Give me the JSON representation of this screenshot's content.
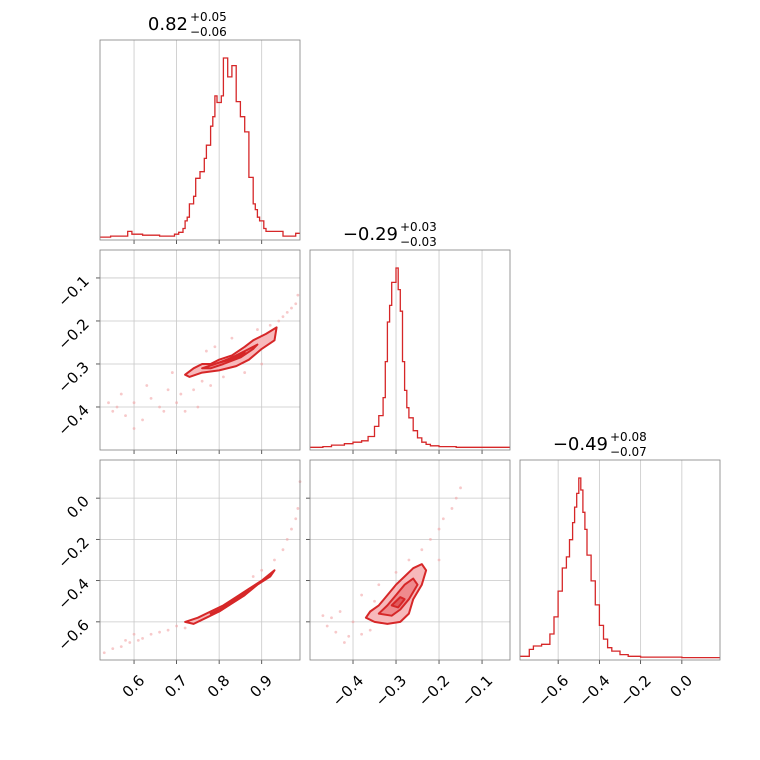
{
  "colors": {
    "accent": "#d62728",
    "fill_light": "#f7b9bb",
    "fill_mid": "#ef8a8d",
    "fill_dark": "#e05a5d",
    "scatter": "#f2a5a6"
  },
  "chart_data": {
    "type": "corner",
    "grid": true,
    "params": [
      {
        "median": "0.82",
        "plus": "+0.05",
        "minus": "−0.06",
        "range": [
          0.52,
          0.99
        ],
        "ticks": [
          0.6,
          0.7,
          0.8,
          0.9
        ],
        "tick_labels": [
          "0.6",
          "0.7",
          "0.8",
          "0.9"
        ]
      },
      {
        "median": "−0.29",
        "plus": "+0.03",
        "minus": "−0.03",
        "range": [
          -0.5,
          -0.035
        ],
        "ticks": [
          -0.4,
          -0.3,
          -0.2,
          -0.1
        ],
        "tick_labels": [
          "−0.4",
          "−0.3",
          "−0.2",
          "−0.1"
        ]
      },
      {
        "median": "−0.49",
        "plus": "+0.08",
        "minus": "−0.07",
        "range": [
          -0.785,
          0.185
        ],
        "ticks": [
          -0.6,
          -0.4,
          -0.2,
          0.0
        ],
        "tick_labels": [
          "−0.6",
          "−0.4",
          "−0.2",
          "0.0"
        ]
      }
    ],
    "histograms": [
      {
        "param": 0,
        "counts": [
          {
            "x": 0.52,
            "c": 1
          },
          {
            "x": 0.545,
            "c": 2
          },
          {
            "x": 0.575,
            "c": 2
          },
          {
            "x": 0.585,
            "c": 7
          },
          {
            "x": 0.595,
            "c": 4
          },
          {
            "x": 0.62,
            "c": 3
          },
          {
            "x": 0.66,
            "c": 2
          },
          {
            "x": 0.695,
            "c": 4
          },
          {
            "x": 0.705,
            "c": 6
          },
          {
            "x": 0.715,
            "c": 10
          },
          {
            "x": 0.72,
            "c": 18
          },
          {
            "x": 0.725,
            "c": 22
          },
          {
            "x": 0.73,
            "c": 36
          },
          {
            "x": 0.74,
            "c": 44
          },
          {
            "x": 0.745,
            "c": 63
          },
          {
            "x": 0.755,
            "c": 70
          },
          {
            "x": 0.765,
            "c": 84
          },
          {
            "x": 0.77,
            "c": 98
          },
          {
            "x": 0.78,
            "c": 118
          },
          {
            "x": 0.785,
            "c": 128
          },
          {
            "x": 0.79,
            "c": 150
          },
          {
            "x": 0.795,
            "c": 143
          },
          {
            "x": 0.805,
            "c": 150
          },
          {
            "x": 0.81,
            "c": 190
          },
          {
            "x": 0.82,
            "c": 170
          },
          {
            "x": 0.83,
            "c": 182
          },
          {
            "x": 0.84,
            "c": 144
          },
          {
            "x": 0.85,
            "c": 128
          },
          {
            "x": 0.86,
            "c": 112
          },
          {
            "x": 0.87,
            "c": 64
          },
          {
            "x": 0.88,
            "c": 36
          },
          {
            "x": 0.885,
            "c": 30
          },
          {
            "x": 0.89,
            "c": 22
          },
          {
            "x": 0.895,
            "c": 18
          },
          {
            "x": 0.905,
            "c": 10
          },
          {
            "x": 0.91,
            "c": 7
          },
          {
            "x": 0.93,
            "c": 7
          },
          {
            "x": 0.95,
            "c": 2
          },
          {
            "x": 0.98,
            "c": 5
          }
        ]
      },
      {
        "param": 1,
        "counts": [
          {
            "x": -0.5,
            "c": 1
          },
          {
            "x": -0.47,
            "c": 2
          },
          {
            "x": -0.45,
            "c": 4
          },
          {
            "x": -0.42,
            "c": 6
          },
          {
            "x": -0.4,
            "c": 8
          },
          {
            "x": -0.38,
            "c": 10
          },
          {
            "x": -0.365,
            "c": 16
          },
          {
            "x": -0.35,
            "c": 30
          },
          {
            "x": -0.34,
            "c": 45
          },
          {
            "x": -0.33,
            "c": 70
          },
          {
            "x": -0.325,
            "c": 120
          },
          {
            "x": -0.32,
            "c": 175
          },
          {
            "x": -0.315,
            "c": 198
          },
          {
            "x": -0.31,
            "c": 230
          },
          {
            "x": -0.3,
            "c": 250
          },
          {
            "x": -0.295,
            "c": 220
          },
          {
            "x": -0.29,
            "c": 190
          },
          {
            "x": -0.285,
            "c": 120
          },
          {
            "x": -0.28,
            "c": 80
          },
          {
            "x": -0.275,
            "c": 56
          },
          {
            "x": -0.27,
            "c": 42
          },
          {
            "x": -0.26,
            "c": 24
          },
          {
            "x": -0.25,
            "c": 14
          },
          {
            "x": -0.24,
            "c": 8
          },
          {
            "x": -0.23,
            "c": 5
          },
          {
            "x": -0.22,
            "c": 3
          },
          {
            "x": -0.2,
            "c": 2
          },
          {
            "x": -0.16,
            "c": 1
          },
          {
            "x": -0.1,
            "c": 1
          }
        ]
      },
      {
        "param": 2,
        "counts": [
          {
            "x": -0.785,
            "c": 2
          },
          {
            "x": -0.74,
            "c": 10
          },
          {
            "x": -0.72,
            "c": 14
          },
          {
            "x": -0.68,
            "c": 16
          },
          {
            "x": -0.64,
            "c": 28
          },
          {
            "x": -0.62,
            "c": 48
          },
          {
            "x": -0.6,
            "c": 78
          },
          {
            "x": -0.58,
            "c": 105
          },
          {
            "x": -0.56,
            "c": 118
          },
          {
            "x": -0.545,
            "c": 138
          },
          {
            "x": -0.53,
            "c": 158
          },
          {
            "x": -0.52,
            "c": 176
          },
          {
            "x": -0.51,
            "c": 192
          },
          {
            "x": -0.5,
            "c": 210
          },
          {
            "x": -0.49,
            "c": 196
          },
          {
            "x": -0.48,
            "c": 170
          },
          {
            "x": -0.47,
            "c": 150
          },
          {
            "x": -0.46,
            "c": 120
          },
          {
            "x": -0.44,
            "c": 90
          },
          {
            "x": -0.42,
            "c": 62
          },
          {
            "x": -0.4,
            "c": 38
          },
          {
            "x": -0.38,
            "c": 22
          },
          {
            "x": -0.36,
            "c": 12
          },
          {
            "x": -0.34,
            "c": 8
          },
          {
            "x": -0.3,
            "c": 4
          },
          {
            "x": -0.26,
            "c": 2
          },
          {
            "x": -0.2,
            "c": 1
          },
          {
            "x": -0.1,
            "c": 1
          },
          {
            "x": 0.0,
            "c": 0.5
          }
        ]
      }
    ],
    "pairs": [
      {
        "x_param": 0,
        "y_param": 1,
        "contours": [
          [
            [
              0.72,
              -0.325
            ],
            [
              0.74,
              -0.31
            ],
            [
              0.76,
              -0.3
            ],
            [
              0.78,
              -0.3
            ],
            [
              0.8,
              -0.29
            ],
            [
              0.83,
              -0.28
            ],
            [
              0.86,
              -0.26
            ],
            [
              0.88,
              -0.245
            ],
            [
              0.91,
              -0.23
            ],
            [
              0.935,
              -0.215
            ],
            [
              0.93,
              -0.245
            ],
            [
              0.9,
              -0.265
            ],
            [
              0.87,
              -0.29
            ],
            [
              0.84,
              -0.305
            ],
            [
              0.8,
              -0.315
            ],
            [
              0.76,
              -0.32
            ],
            [
              0.73,
              -0.33
            ]
          ],
          [
            [
              0.76,
              -0.31
            ],
            [
              0.79,
              -0.3
            ],
            [
              0.82,
              -0.29
            ],
            [
              0.86,
              -0.27
            ],
            [
              0.89,
              -0.255
            ],
            [
              0.88,
              -0.265
            ],
            [
              0.85,
              -0.285
            ],
            [
              0.81,
              -0.3
            ],
            [
              0.78,
              -0.31
            ]
          ],
          [
            [
              0.8,
              -0.297
            ],
            [
              0.83,
              -0.285
            ],
            [
              0.86,
              -0.273
            ],
            [
              0.85,
              -0.282
            ],
            [
              0.82,
              -0.292
            ]
          ]
        ],
        "scatter": [
          [
            0.55,
            -0.41
          ],
          [
            0.56,
            -0.4
          ],
          [
            0.58,
            -0.42
          ],
          [
            0.6,
            -0.39
          ],
          [
            0.57,
            -0.37
          ],
          [
            0.62,
            -0.43
          ],
          [
            0.64,
            -0.38
          ],
          [
            0.66,
            -0.4
          ],
          [
            0.63,
            -0.35
          ],
          [
            0.68,
            -0.36
          ],
          [
            0.69,
            -0.32
          ],
          [
            0.71,
            -0.37
          ],
          [
            0.7,
            -0.39
          ],
          [
            0.74,
            -0.36
          ],
          [
            0.76,
            -0.34
          ],
          [
            0.78,
            -0.35
          ],
          [
            0.77,
            -0.27
          ],
          [
            0.79,
            -0.26
          ],
          [
            0.81,
            -0.33
          ],
          [
            0.83,
            -0.24
          ],
          [
            0.86,
            -0.32
          ],
          [
            0.89,
            -0.22
          ],
          [
            0.9,
            -0.3
          ],
          [
            0.92,
            -0.21
          ],
          [
            0.94,
            -0.2
          ],
          [
            0.95,
            -0.19
          ],
          [
            0.96,
            -0.18
          ],
          [
            0.97,
            -0.17
          ],
          [
            0.98,
            -0.16
          ],
          [
            0.985,
            -0.14
          ],
          [
            0.6,
            -0.45
          ],
          [
            0.54,
            -0.39
          ],
          [
            0.67,
            -0.41
          ],
          [
            0.72,
            -0.41
          ],
          [
            0.75,
            -0.4
          ]
        ]
      },
      {
        "x_param": 0,
        "y_param": 2,
        "contours": [
          [
            [
              0.72,
              -0.6
            ],
            [
              0.75,
              -0.58
            ],
            [
              0.78,
              -0.55
            ],
            [
              0.81,
              -0.52
            ],
            [
              0.84,
              -0.48
            ],
            [
              0.87,
              -0.44
            ],
            [
              0.9,
              -0.4
            ],
            [
              0.93,
              -0.35
            ],
            [
              0.92,
              -0.38
            ],
            [
              0.89,
              -0.42
            ],
            [
              0.86,
              -0.47
            ],
            [
              0.83,
              -0.51
            ],
            [
              0.8,
              -0.55
            ],
            [
              0.77,
              -0.58
            ],
            [
              0.74,
              -0.61
            ]
          ],
          [
            [
              0.78,
              -0.56
            ],
            [
              0.81,
              -0.53
            ],
            [
              0.84,
              -0.49
            ],
            [
              0.87,
              -0.45
            ],
            [
              0.86,
              -0.47
            ],
            [
              0.83,
              -0.51
            ],
            [
              0.8,
              -0.55
            ]
          ],
          [
            [
              0.81,
              -0.525
            ],
            [
              0.835,
              -0.495
            ],
            [
              0.83,
              -0.505
            ]
          ]
        ],
        "scatter": [
          [
            0.53,
            -0.75
          ],
          [
            0.55,
            -0.73
          ],
          [
            0.57,
            -0.72
          ],
          [
            0.59,
            -0.7
          ],
          [
            0.61,
            -0.69
          ],
          [
            0.62,
            -0.68
          ],
          [
            0.64,
            -0.66
          ],
          [
            0.66,
            -0.65
          ],
          [
            0.68,
            -0.64
          ],
          [
            0.7,
            -0.62
          ],
          [
            0.72,
            -0.63
          ],
          [
            0.88,
            -0.38
          ],
          [
            0.9,
            -0.35
          ],
          [
            0.93,
            -0.3
          ],
          [
            0.95,
            -0.25
          ],
          [
            0.96,
            -0.2
          ],
          [
            0.97,
            -0.15
          ],
          [
            0.98,
            -0.1
          ],
          [
            0.985,
            -0.05
          ],
          [
            0.99,
            0.08
          ],
          [
            0.6,
            -0.66
          ],
          [
            0.58,
            -0.69
          ]
        ]
      },
      {
        "x_param": 1,
        "y_param": 2,
        "contours": [
          [
            [
              -0.37,
              -0.58
            ],
            [
              -0.36,
              -0.55
            ],
            [
              -0.34,
              -0.52
            ],
            [
              -0.32,
              -0.47
            ],
            [
              -0.3,
              -0.42
            ],
            [
              -0.28,
              -0.38
            ],
            [
              -0.26,
              -0.34
            ],
            [
              -0.24,
              -0.32
            ],
            [
              -0.23,
              -0.35
            ],
            [
              -0.24,
              -0.42
            ],
            [
              -0.26,
              -0.49
            ],
            [
              -0.27,
              -0.56
            ],
            [
              -0.29,
              -0.6
            ],
            [
              -0.32,
              -0.61
            ],
            [
              -0.35,
              -0.6
            ]
          ],
          [
            [
              -0.34,
              -0.56
            ],
            [
              -0.32,
              -0.52
            ],
            [
              -0.3,
              -0.47
            ],
            [
              -0.28,
              -0.42
            ],
            [
              -0.26,
              -0.39
            ],
            [
              -0.25,
              -0.42
            ],
            [
              -0.27,
              -0.49
            ],
            [
              -0.29,
              -0.54
            ],
            [
              -0.31,
              -0.57
            ]
          ],
          [
            [
              -0.31,
              -0.52
            ],
            [
              -0.29,
              -0.48
            ],
            [
              -0.28,
              -0.49
            ],
            [
              -0.295,
              -0.53
            ]
          ]
        ],
        "scatter": [
          [
            -0.46,
            -0.62
          ],
          [
            -0.44,
            -0.65
          ],
          [
            -0.42,
            -0.7
          ],
          [
            -0.45,
            -0.58
          ],
          [
            -0.4,
            -0.6
          ],
          [
            -0.38,
            -0.66
          ],
          [
            -0.36,
            -0.64
          ],
          [
            -0.35,
            -0.5
          ],
          [
            -0.38,
            -0.47
          ],
          [
            -0.34,
            -0.42
          ],
          [
            -0.3,
            -0.36
          ],
          [
            -0.27,
            -0.3
          ],
          [
            -0.24,
            -0.25
          ],
          [
            -0.22,
            -0.2
          ],
          [
            -0.2,
            -0.15
          ],
          [
            -0.19,
            -0.1
          ],
          [
            -0.17,
            -0.05
          ],
          [
            -0.16,
            0.0
          ],
          [
            -0.15,
            0.05
          ],
          [
            -0.43,
            -0.55
          ],
          [
            -0.47,
            -0.57
          ],
          [
            -0.41,
            -0.67
          ],
          [
            -0.2,
            -0.3
          ]
        ]
      }
    ]
  }
}
